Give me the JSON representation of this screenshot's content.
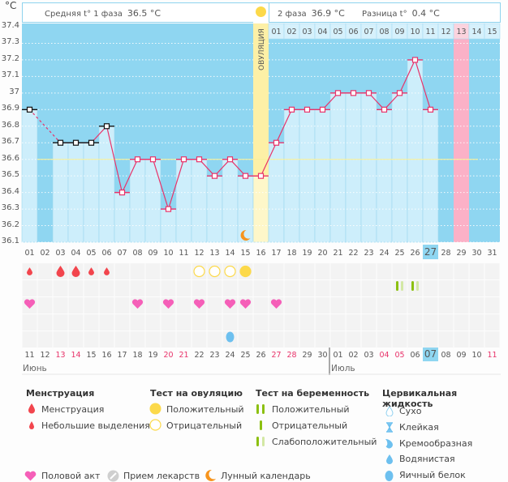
{
  "unit": "°C",
  "header": {
    "phase1_label": "Средняя t° 1 фаза",
    "phase1_value": "36.5 °C",
    "phase2_label": "2 фаза",
    "phase2_value": "36.9 °C",
    "diff_label": "Разница t°",
    "diff_value": "0.4 °C",
    "ovulation_label": "ОВУЛЯЦИЯ"
  },
  "colors": {
    "background_blue": "#8fd6f1",
    "bar_fill": "#cdeefb",
    "line": "#e8336a",
    "ovulation": "#fdf0a6",
    "pink_day": "#fbb1c7",
    "coverline": "#f7f09b",
    "red_date": "#e8336a",
    "today": "#8fd6f1"
  },
  "chart_data": {
    "type": "line",
    "title": "",
    "ylabel": "°C",
    "ylim": [
      36.1,
      37.4
    ],
    "yticks": [
      "37.4",
      "37.3",
      "37.2",
      "37.1",
      "37",
      "36.9",
      "36.8",
      "36.7",
      "36.6",
      "36.5",
      "36.4",
      "36.3",
      "36.2",
      "36.1"
    ],
    "coverline": 36.6,
    "cycle_days": [
      "01",
      "02",
      "03",
      "04",
      "05",
      "06",
      "07",
      "08",
      "09",
      "10",
      "11",
      "12",
      "13",
      "14",
      "15",
      "16",
      "17",
      "18",
      "19",
      "20",
      "21",
      "22",
      "23",
      "24",
      "25",
      "26",
      "27",
      "28",
      "29",
      "30",
      "31"
    ],
    "temps": [
      36.9,
      null,
      36.7,
      36.7,
      36.7,
      36.8,
      36.4,
      36.6,
      36.6,
      36.3,
      36.6,
      36.6,
      36.5,
      36.6,
      36.5,
      36.5,
      36.7,
      36.9,
      36.9,
      36.9,
      37.0,
      37.0,
      37.0,
      36.9,
      37.0,
      37.2,
      36.9,
      null,
      null,
      null,
      null
    ],
    "excluded_points": [
      1,
      3,
      4,
      5,
      6
    ],
    "ovulation_day": 16,
    "pink_day": 29,
    "today_day": 27,
    "phase2_days": [
      "01",
      "02",
      "03",
      "04",
      "05",
      "06",
      "07",
      "08",
      "09",
      "10",
      "11",
      "12",
      "13",
      "14",
      "15"
    ],
    "phase2_pink_index": 12,
    "calendar_dates": [
      "11",
      "12",
      "13",
      "14",
      "15",
      "16",
      "17",
      "18",
      "19",
      "20",
      "21",
      "22",
      "23",
      "24",
      "25",
      "26",
      "27",
      "28",
      "29",
      "30",
      "01",
      "02",
      "03",
      "04",
      "05",
      "06",
      "07",
      "08",
      "09",
      "10",
      "11"
    ],
    "red_dates": [
      3,
      4,
      10,
      11,
      17,
      18,
      24,
      25,
      31
    ],
    "months": [
      {
        "name": "Июнь",
        "start_index": 1
      },
      {
        "name": "Июль",
        "start_index": 21
      }
    ],
    "menstruation": [
      {
        "day": 1,
        "type": "small"
      },
      {
        "day": 3,
        "type": "big"
      },
      {
        "day": 4,
        "type": "big"
      },
      {
        "day": 5,
        "type": "small"
      },
      {
        "day": 6,
        "type": "small"
      }
    ],
    "ovulation_tests": [
      {
        "day": 12,
        "result": "negative"
      },
      {
        "day": 13,
        "result": "negative"
      },
      {
        "day": 14,
        "result": "negative"
      },
      {
        "day": 15,
        "result": "positive"
      }
    ],
    "pregnancy_tests": [
      {
        "day": 25,
        "result": "weak-positive"
      },
      {
        "day": 26,
        "result": "weak-positive"
      }
    ],
    "intercourse": [
      1,
      8,
      10,
      12,
      14,
      15,
      17
    ],
    "cervical_fluid": [
      {
        "day": 14,
        "type": "egg-white"
      }
    ],
    "moon": [
      15
    ]
  },
  "legend": {
    "menstruation": {
      "title": "Менструация",
      "items": [
        "Менструация",
        "Небольшие выделения"
      ]
    },
    "ovulation_test": {
      "title": "Тест на овуляцию",
      "items": [
        "Положительный",
        "Отрицательный"
      ]
    },
    "pregnancy_test": {
      "title": "Тест на беременность",
      "items": [
        "Положительный",
        "Отрицательный",
        "Слабоположительный"
      ]
    },
    "cervical_fluid": {
      "title": "Цервикальная жидкость",
      "items": [
        "Сухо",
        "Клейкая",
        "Кремообразная",
        "Водянистая",
        "Яичный белок"
      ]
    },
    "bottom": [
      "Половой акт",
      "Прием лекарств",
      "Лунный календарь"
    ]
  }
}
